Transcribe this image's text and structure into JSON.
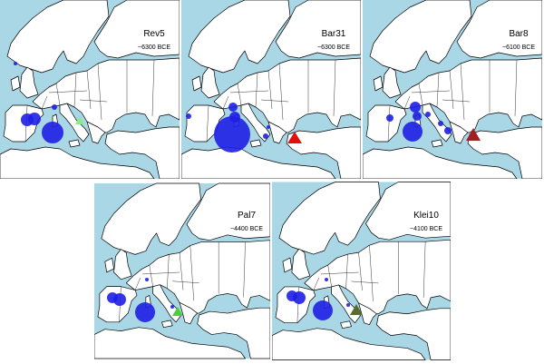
{
  "panels": [
    {
      "name": "Rev5",
      "date": "~6300 BCE"
    },
    {
      "name": "Bar31",
      "date": "~6300 BCE"
    },
    {
      "name": "Bar8",
      "date": "~6100 BCE"
    },
    {
      "name": "Pal7",
      "date": "~4400 BCE"
    },
    {
      "name": "Klei10",
      "date": "~4100 BCE"
    }
  ]
}
